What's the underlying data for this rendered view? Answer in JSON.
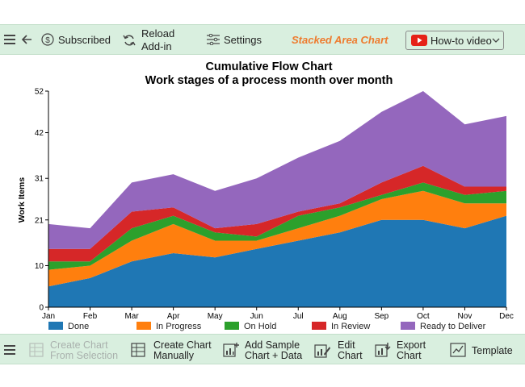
{
  "toolbar": {
    "subscribed_label": "Subscribed",
    "reload_label_line1": "Reload",
    "reload_label_line2": "Add-in",
    "settings_label": "Settings",
    "chart_type_label": "Stacked Area Chart",
    "howto_label": "How-to video"
  },
  "bottom_toolbar": {
    "create_selection_line1": "Create Chart",
    "create_selection_line2": "From Selection",
    "create_manual_line1": "Create Chart",
    "create_manual_line2": "Manually",
    "add_sample_line1": "Add Sample",
    "add_sample_line2": "Chart + Data",
    "edit_line1": "Edit",
    "edit_line2": "Chart",
    "export_line1": "Export",
    "export_line2": "Chart",
    "template_label": "Template"
  },
  "colors": {
    "accent": "#ee7b2e",
    "toolbar_bg": "#d9efdf",
    "youtube_red": "#e62117"
  },
  "chart_data": {
    "type": "area",
    "stacked": true,
    "title": "Cumulative Flow Chart",
    "subtitle": "Work stages of a process month over month",
    "xlabel": "",
    "ylabel": "Work Items",
    "ylim": [
      0,
      52
    ],
    "yticks": [
      0,
      10,
      21,
      31,
      42,
      52
    ],
    "categories": [
      "Jan",
      "Feb",
      "Mar",
      "Apr",
      "May",
      "Jun",
      "Jul",
      "Aug",
      "Sep",
      "Oct",
      "Nov",
      "Dec"
    ],
    "series": [
      {
        "name": "Done",
        "color": "#1f77b4",
        "values": [
          5,
          7,
          11,
          13,
          12,
          14,
          16,
          18,
          21,
          21,
          19,
          22
        ]
      },
      {
        "name": "In Progress",
        "color": "#ff7f0e",
        "values": [
          4,
          3,
          5,
          7,
          4,
          2,
          3,
          4,
          5,
          7,
          6,
          3
        ]
      },
      {
        "name": "On Hold",
        "color": "#2ca02c",
        "values": [
          2,
          1,
          3,
          2,
          2,
          1,
          3,
          2,
          1,
          2,
          2,
          3
        ]
      },
      {
        "name": "In Review",
        "color": "#d62728",
        "values": [
          3,
          3,
          4,
          2,
          1,
          3,
          1,
          1,
          3,
          4,
          2,
          1
        ]
      },
      {
        "name": "Ready to Deliver",
        "color": "#9467bd",
        "values": [
          6,
          5,
          7,
          8,
          9,
          11,
          13,
          15,
          17,
          18,
          15,
          17
        ]
      }
    ],
    "legend_position": "bottom"
  }
}
